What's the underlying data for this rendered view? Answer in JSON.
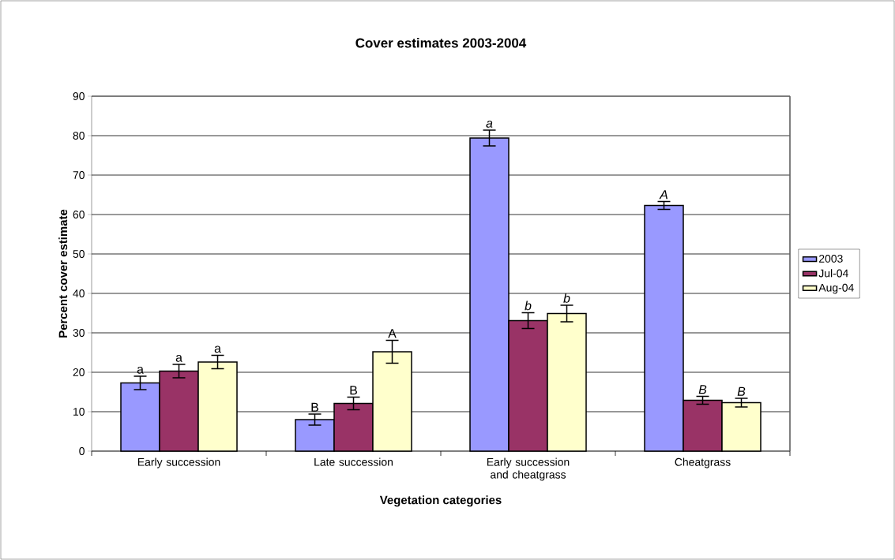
{
  "chart_data": {
    "type": "bar",
    "title": "Cover estimates 2003-2004",
    "xlabel": "Vegetation categories",
    "ylabel": "Percent cover estimate",
    "categories": [
      "Early succession",
      "Late succession",
      "Early succession and cheatgrass",
      "Cheatgrass"
    ],
    "series": [
      {
        "name": "2003",
        "color": "#9999ff",
        "values": [
          17.3,
          8.0,
          79.4,
          62.3
        ],
        "errors": [
          1.7,
          1.4,
          2.0,
          1.0
        ]
      },
      {
        "name": "Jul-04",
        "color": "#993366",
        "values": [
          20.3,
          12.1,
          33.1,
          12.9
        ],
        "errors": [
          1.7,
          1.6,
          2.0,
          1.0
        ]
      },
      {
        "name": "Aug-04",
        "color": "#ffffcc",
        "values": [
          22.6,
          25.2,
          34.9,
          12.3
        ],
        "errors": [
          1.7,
          2.9,
          2.1,
          1.1
        ]
      }
    ],
    "ylim": [
      0,
      90
    ],
    "yticks": [
      0,
      10,
      20,
      30,
      40,
      50,
      60,
      70,
      80,
      90
    ],
    "grid": "y",
    "legend": "right",
    "annotations": [
      "a",
      "a",
      "a",
      "B",
      "B",
      "A",
      "*a*",
      "*b*",
      "*b*",
      "*A*",
      "*B*",
      "*B*"
    ]
  }
}
